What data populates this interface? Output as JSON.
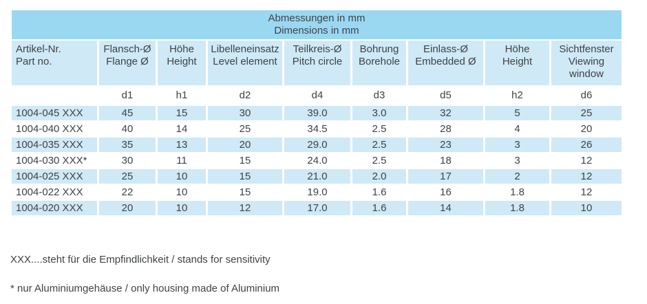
{
  "table": {
    "title_lines": [
      "Abmessungen in mm",
      "Dimensions in mm"
    ],
    "columns": [
      {
        "lines": [
          "Artikel-Nr.",
          "Part no."
        ],
        "code": ""
      },
      {
        "lines": [
          "Flansch-Ø",
          "Flange Ø"
        ],
        "code": "d1"
      },
      {
        "lines": [
          "Höhe",
          "Height"
        ],
        "code": "h1"
      },
      {
        "lines": [
          "Libelleneinsatz",
          "Level element"
        ],
        "code": "d2"
      },
      {
        "lines": [
          "Teilkreis-Ø",
          "Pitch circle"
        ],
        "code": "d4"
      },
      {
        "lines": [
          "Bohrung",
          "Borehole"
        ],
        "code": "d3"
      },
      {
        "lines": [
          "Einlass-Ø",
          "Embedded Ø"
        ],
        "code": "d5"
      },
      {
        "lines": [
          "Höhe",
          "Height"
        ],
        "code": "h2"
      },
      {
        "lines": [
          "Sichtfenster",
          "Viewing",
          "window"
        ],
        "code": "d6"
      }
    ],
    "rows": [
      [
        "1004-045 XXX",
        "45",
        "15",
        "30",
        "39.0",
        "3.0",
        "32",
        "5",
        "25"
      ],
      [
        "1004-040 XXX",
        "40",
        "14",
        "25",
        "34.5",
        "2.5",
        "28",
        "4",
        "20"
      ],
      [
        "1004-035 XXX",
        "35",
        "13",
        "20",
        "29.0",
        "2.5",
        "23",
        "3",
        "26"
      ],
      [
        "1004-030 XXX*",
        "30",
        "11",
        "15",
        "24.0",
        "2.5",
        "18",
        "3",
        "12"
      ],
      [
        "1004-025 XXX",
        "25",
        "10",
        "15",
        "21.0",
        "2.0",
        "17",
        "2",
        "12"
      ],
      [
        "1004-022 XXX",
        "22",
        "10",
        "15",
        "19.0",
        "1.6",
        "16",
        "1.8",
        "12"
      ],
      [
        "1004-020 XXX",
        "20",
        "10",
        "12",
        "17.0",
        "1.6",
        "14",
        "1.8",
        "10"
      ]
    ]
  },
  "footnotes": [
    "XXX....steht für die Empfindlichkeit / stands for sensitivity",
    "* nur Aluminiumgehäuse / only housing made of Aluminium"
  ],
  "colors": {
    "header_blue": "#9ad8f2",
    "cell_blue": "#cfe9f6",
    "text": "#3e4245"
  }
}
